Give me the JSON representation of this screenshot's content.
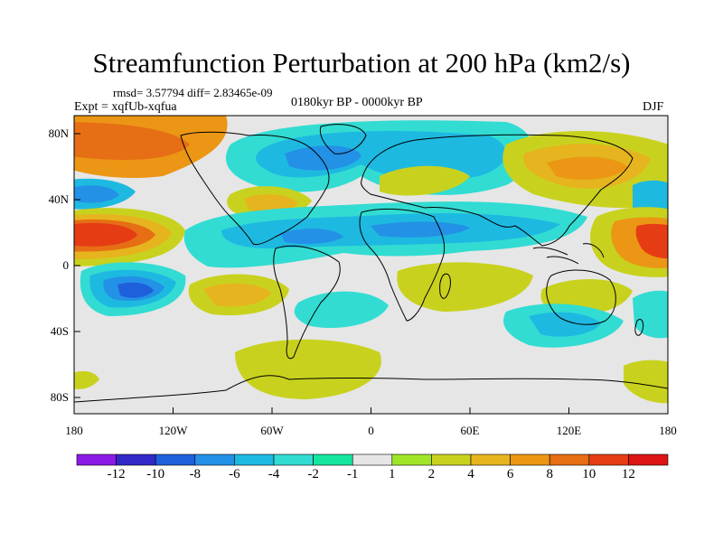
{
  "title": "Streamfunction Perturbation at 200 hPa (km2/s)",
  "stats": "rmsd= 3.57794 diff= 2.83465e-09",
  "experiment": "Expt = xqfUb-xqfua",
  "period": "0180kyr BP - 0000kyr BP",
  "season": "DJF",
  "y_ticks": [
    "80N",
    "40N",
    "0",
    "40S",
    "80S"
  ],
  "x_ticks": [
    "180",
    "120W",
    "60W",
    "0",
    "60E",
    "120E",
    "180"
  ],
  "colorbar": {
    "labels": [
      "-12",
      "-10",
      "-8",
      "-6",
      "-4",
      "-2",
      "-1",
      "1",
      "2",
      "4",
      "6",
      "8",
      "10",
      "12"
    ],
    "colors": [
      "#8c1ae6",
      "#3228c8",
      "#1e5fdc",
      "#2391e6",
      "#1eb9e1",
      "#32dcd2",
      "#14e6a0",
      "#e6e6e6",
      "#a0e628",
      "#c8d21e",
      "#e6b41e",
      "#eb9614",
      "#e66e14",
      "#e63c14",
      "#dc1414"
    ]
  },
  "field_colors": {
    "c_m10": "#3228c8",
    "c_m8": "#1e5fdc",
    "c_m6": "#2391e6",
    "c_m4": "#1eb9e1",
    "c_m2": "#32dcd2",
    "c_m1": "#14e6a0",
    "c_0": "#e6e6e6",
    "c_p1": "#a0e628",
    "c_p2": "#c8d21e",
    "c_p4": "#e6b41e",
    "c_p6": "#eb9614",
    "c_p8": "#e66e14",
    "c_p10": "#e63c14",
    "c_p12": "#dc1414"
  }
}
